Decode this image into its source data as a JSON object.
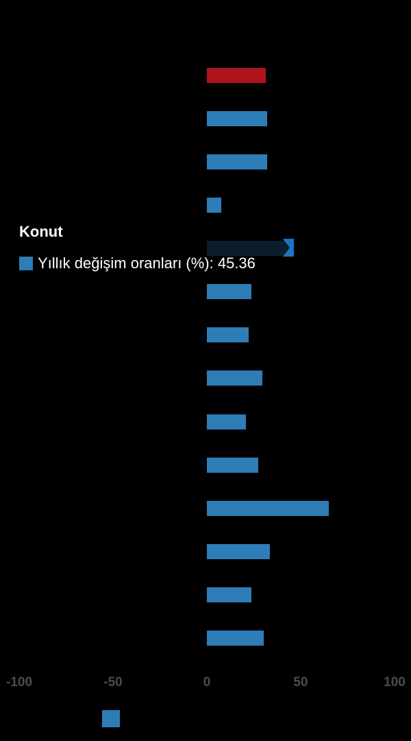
{
  "window": {
    "background": "#000000"
  },
  "tooltip": {
    "title": "Konut",
    "series_name": "Yıllık değişim oranları (%)",
    "value": "45.36",
    "line": "Yıllık değişim oranları (%): 45.36",
    "swatch_color": "#2f7db7"
  },
  "legend": {
    "symbol_color": "#2f7db7",
    "position": "bottom"
  },
  "colors": {
    "background": "#000000",
    "bar_blue": "#2f7db7",
    "bar_red": "#af151e",
    "bar_highlight": "#0c1e2c",
    "arrow_blue": "#1d74c2",
    "axis_label": "#4c4c4c",
    "tooltip_text": "#ffffff"
  },
  "chart_data": {
    "type": "bar",
    "orientation": "horizontal",
    "title": "",
    "series": [
      {
        "name": "Yıllık değişim oranları (%)",
        "color": "#2f7db7"
      }
    ],
    "categories": [
      "",
      "",
      "",
      "",
      "Konut",
      "",
      "",
      "",
      "",
      "",
      "",
      "",
      "",
      ""
    ],
    "values": [
      31.4,
      32.1,
      32.1,
      7.7,
      45.36,
      23.7,
      22.3,
      29.6,
      20.8,
      27.4,
      65.0,
      33.7,
      23.7,
      30.3
    ],
    "bar_colors": [
      "red",
      "blue",
      "blue",
      "blue",
      "highlight",
      "blue",
      "blue",
      "blue",
      "blue",
      "blue",
      "blue",
      "blue",
      "blue",
      "blue"
    ],
    "highlight_index": 4,
    "highlight_value": 45.36,
    "xlabel": "",
    "ylabel": "",
    "xlim": [
      -100,
      100
    ],
    "x_ticks": [
      "-100",
      "-50",
      "0",
      "50",
      "100"
    ],
    "x_tick_values": [
      -100,
      -50,
      0,
      50,
      100
    ],
    "grid": false,
    "legend_position": "bottom"
  }
}
